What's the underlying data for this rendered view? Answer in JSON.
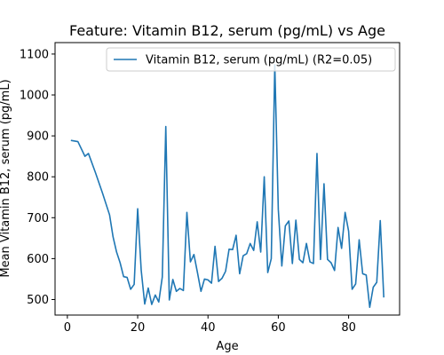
{
  "chart_data": {
    "type": "line",
    "title": "Feature: Vitamin B12, serum (pg/mL) vs Age",
    "xlabel": "Age",
    "ylabel": "Mean Vitamin B12, serum (pg/mL)",
    "xlim": [
      -3.5,
      94.5
    ],
    "ylim": [
      462,
      1128
    ],
    "xticks": [
      0,
      20,
      40,
      60,
      80
    ],
    "yticks": [
      500,
      600,
      700,
      800,
      900,
      1000,
      1100
    ],
    "grid": false,
    "legend_position": "upper right",
    "series": [
      {
        "name": "Vitamin B12, serum (pg/mL) (R2=0.05)",
        "color": "#1f77b4",
        "x": [
          1,
          3,
          5,
          6,
          8,
          10,
          12,
          13,
          14,
          15,
          16,
          17,
          18,
          19,
          20,
          21,
          22,
          23,
          24,
          25,
          26,
          27,
          28,
          29,
          30,
          31,
          32,
          33,
          34,
          35,
          36,
          37,
          38,
          39,
          40,
          41,
          42,
          43,
          44,
          45,
          46,
          47,
          48,
          49,
          50,
          51,
          52,
          53,
          54,
          55,
          56,
          57,
          58,
          59,
          60,
          61,
          62,
          63,
          64,
          65,
          66,
          67,
          68,
          69,
          70,
          71,
          72,
          73,
          74,
          75,
          76,
          77,
          78,
          79,
          80,
          81,
          82,
          83,
          84,
          85,
          86,
          87,
          88,
          89,
          90
        ],
        "y": [
          889,
          886,
          850,
          857,
          810,
          760,
          707,
          653,
          616,
          590,
          556,
          554,
          525,
          537,
          722,
          572,
          489,
          528,
          488,
          511,
          494,
          555,
          923,
          499,
          549,
          520,
          527,
          522,
          713,
          592,
          610,
          566,
          520,
          550,
          548,
          540,
          630,
          544,
          552,
          569,
          623,
          622,
          657,
          563,
          607,
          612,
          637,
          620,
          690,
          616,
          800,
          566,
          600,
          1074,
          720,
          582,
          680,
          692,
          588,
          694,
          598,
          590,
          637,
          592,
          588,
          857,
          598,
          783,
          598,
          590,
          571,
          676,
          625,
          713,
          667,
          525,
          538,
          646,
          563,
          560,
          481,
          530,
          542,
          693,
          505
        ]
      }
    ]
  }
}
